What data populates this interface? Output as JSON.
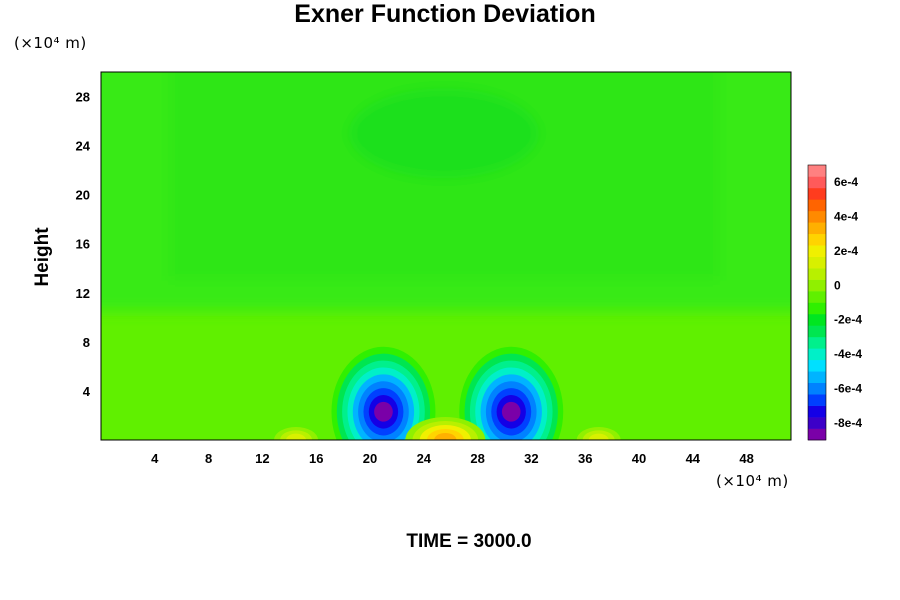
{
  "chart_data": {
    "type": "heatmap",
    "title": "Exner Function Deviation",
    "ylabel": "Height",
    "y_unit": "(×10⁴ m)",
    "x_unit": "(×10⁴ m)",
    "footer": "TIME = 3000.0",
    "xlim": [
      0,
      51.3
    ],
    "ylim": [
      0,
      30
    ],
    "x_ticks": [
      "4",
      "8",
      "12",
      "16",
      "20",
      "24",
      "28",
      "32",
      "36",
      "40",
      "44",
      "48"
    ],
    "y_ticks": [
      "4",
      "8",
      "12",
      "16",
      "20",
      "24",
      "28"
    ],
    "background_value": -7.5e-05,
    "features": [
      {
        "kind": "min",
        "x": 21.0,
        "y": 2.3,
        "value": -0.00085
      },
      {
        "kind": "min",
        "x": 30.5,
        "y": 2.3,
        "value": -0.00085
      },
      {
        "kind": "max",
        "x": 25.6,
        "y": 0.0,
        "value": 0.00035
      },
      {
        "kind": "max",
        "x": 14.5,
        "y": 0.0,
        "value": 0.00012
      },
      {
        "kind": "max",
        "x": 37.0,
        "y": 0.0,
        "value": 0.00012
      }
    ],
    "colorbar": {
      "min": -0.0009,
      "max": 0.0007,
      "tick_labels": [
        "6e-4",
        "4e-4",
        "2e-4",
        "0",
        "-2e-4",
        "-4e-4",
        "-6e-4",
        "-8e-4"
      ],
      "colors": [
        "#7a00a8",
        "#3c00c8",
        "#1400e6",
        "#0040ff",
        "#0082ff",
        "#00b4ff",
        "#00e0ff",
        "#00f0c8",
        "#00f08c",
        "#00e650",
        "#00e620",
        "#30f000",
        "#60f000",
        "#90f000",
        "#b8f000",
        "#d8f000",
        "#f0f000",
        "#ffd400",
        "#ffb000",
        "#ff8a00",
        "#ff6400",
        "#ff3c1e",
        "#ff5a5a",
        "#ff8080"
      ]
    }
  }
}
